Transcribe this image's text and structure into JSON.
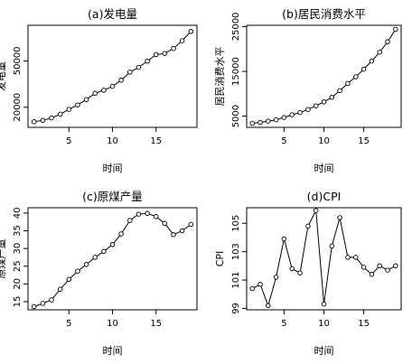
{
  "chart_data": [
    {
      "type": "line",
      "title": "(a)发电量",
      "xlabel": "时间",
      "ylabel": "发电量",
      "x": [
        1,
        2,
        3,
        4,
        5,
        6,
        7,
        8,
        9,
        10,
        11,
        12,
        13,
        14,
        15,
        16,
        17,
        18,
        19
      ],
      "values": [
        10600,
        11500,
        13100,
        15500,
        18600,
        21500,
        25000,
        29000,
        31000,
        33500,
        37500,
        42700,
        45800,
        49800,
        54000,
        54800,
        58000,
        63000,
        69000
      ],
      "xticks": [
        5,
        10,
        15
      ],
      "yticks": [
        20000,
        50000
      ],
      "xlim": [
        0.3,
        19.7
      ],
      "ylim": [
        7000,
        73000
      ],
      "markers": "open-circle"
    },
    {
      "type": "line",
      "title": "(b)居民消费水平",
      "xlabel": "时间",
      "ylabel": "居民消费水平",
      "x": [
        1,
        2,
        3,
        4,
        5,
        6,
        7,
        8,
        9,
        10,
        11,
        12,
        13,
        14,
        15,
        16,
        17,
        18,
        19
      ],
      "values": [
        3400,
        3600,
        3900,
        4200,
        4700,
        5300,
        5800,
        6500,
        7300,
        8200,
        9200,
        10700,
        12300,
        13800,
        15500,
        17300,
        19300,
        21600,
        24400
      ],
      "xticks": [
        5,
        10,
        15
      ],
      "yticks": [
        5000,
        15000,
        25000
      ],
      "xlim": [
        0.3,
        19.7
      ],
      "ylim": [
        2500,
        25300
      ],
      "markers": "open-circle"
    },
    {
      "type": "line",
      "title": "(c)原煤产量",
      "xlabel": "时间",
      "ylabel": "原煤产量",
      "x": [
        1,
        2,
        3,
        4,
        5,
        6,
        7,
        8,
        9,
        10,
        11,
        12,
        13,
        14,
        15,
        16,
        17,
        18,
        19
      ],
      "values": [
        13.6,
        14.5,
        15.5,
        18.5,
        21.3,
        23.6,
        25.5,
        27.5,
        29.2,
        31.1,
        34.1,
        37.9,
        39.7,
        39.9,
        39.0,
        37.1,
        33.9,
        35.0,
        36.8
      ],
      "xticks": [
        5,
        10,
        15
      ],
      "yticks": [
        15,
        20,
        25,
        30,
        35,
        40
      ],
      "xlim": [
        0.3,
        19.7
      ],
      "ylim": [
        12.7,
        41.5
      ],
      "markers": "open-circle"
    },
    {
      "type": "line",
      "title": "(d)CPI",
      "xlabel": "时间",
      "ylabel": "CPI",
      "x": [
        1,
        2,
        3,
        4,
        5,
        6,
        7,
        8,
        9,
        10,
        11,
        12,
        13,
        14,
        15,
        16,
        17,
        18,
        19
      ],
      "values": [
        100.4,
        100.7,
        99.2,
        101.2,
        103.9,
        101.8,
        101.5,
        104.8,
        105.9,
        99.3,
        103.4,
        105.4,
        102.6,
        102.6,
        101.9,
        101.4,
        102.0,
        101.7,
        102.0
      ],
      "xticks": [
        5,
        10,
        15
      ],
      "yticks": [
        99,
        101,
        103,
        105
      ],
      "xlim": [
        0.3,
        19.7
      ],
      "ylim": [
        98.9,
        106.1
      ],
      "markers": "open-circle"
    }
  ]
}
